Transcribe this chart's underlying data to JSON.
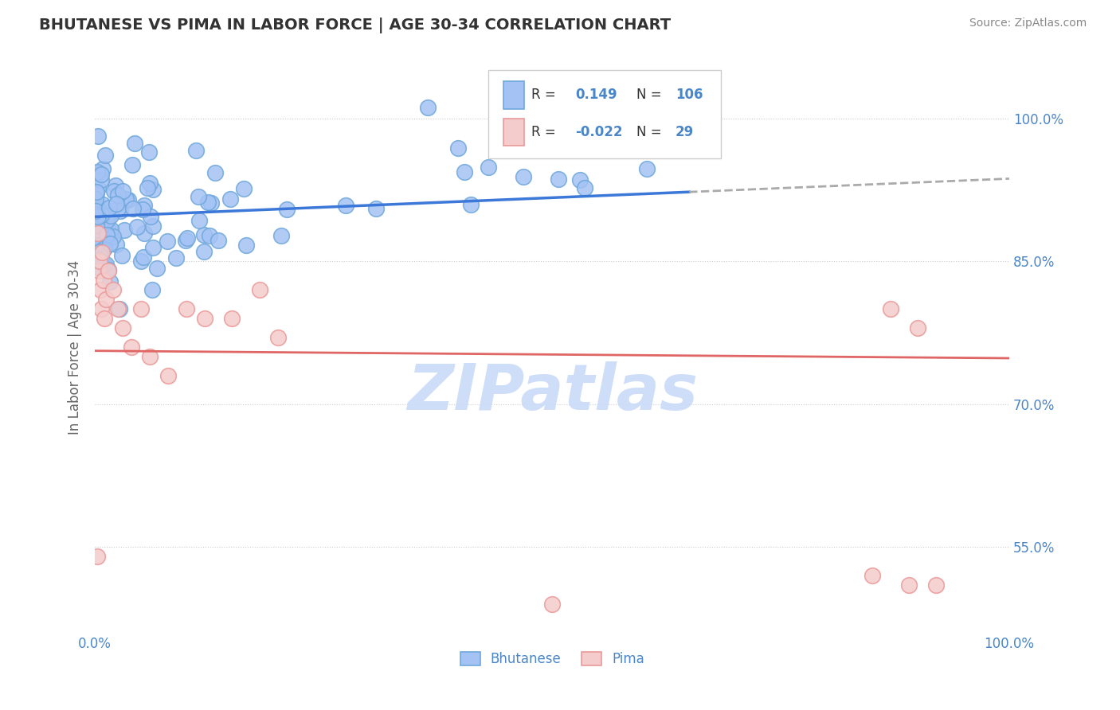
{
  "title": "BHUTANESE VS PIMA IN LABOR FORCE | AGE 30-34 CORRELATION CHART",
  "source_text": "Source: ZipAtlas.com",
  "ylabel": "In Labor Force | Age 30-34",
  "r_bhutanese": 0.149,
  "n_bhutanese": 106,
  "r_pima": -0.022,
  "n_pima": 29,
  "xlim": [
    0.0,
    1.0
  ],
  "ylim": [
    0.46,
    1.06
  ],
  "yticks": [
    0.55,
    0.7,
    0.85,
    1.0
  ],
  "ytick_labels": [
    "55.0%",
    "70.0%",
    "85.0%",
    "100.0%"
  ],
  "blue_fill": "#a4c2f4",
  "blue_edge": "#6fa8dc",
  "pink_fill": "#f4cccc",
  "pink_edge": "#ea9999",
  "trend_blue": "#3c78d8",
  "trend_pink": "#e06666",
  "trend_dashed": "#aaaaaa",
  "background": "#ffffff",
  "grid_color": "#cccccc",
  "axis_color": "#4a86c8",
  "title_color": "#333333",
  "watermark_color": "#c9daf8",
  "legend_text_dark": "#333333",
  "legend_border": "#cccccc"
}
